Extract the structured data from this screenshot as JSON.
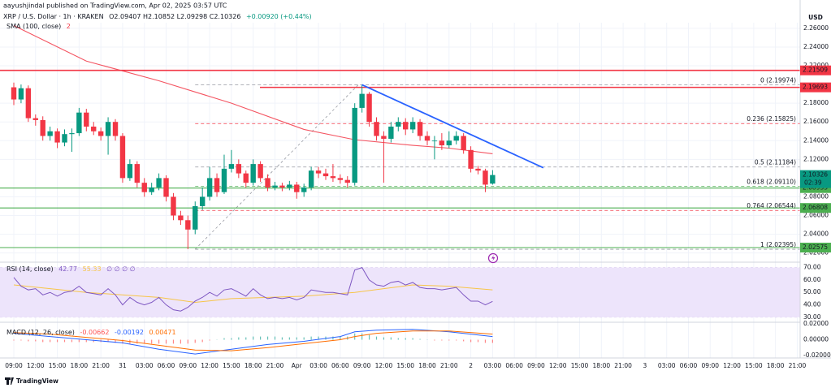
{
  "chart_data": {
    "type": "candlestick",
    "author": "aayushjindal published on TradingView.com, Apr 02, 2025 03:57 UTC",
    "title": "XRP / U.S. Dollar · 1h · KRAKEN",
    "ohlc_readout": "O2.09407 H2.10852 L2.09298 C2.10326",
    "change_readout": "+0.00920 (+0.44%)",
    "currency": "USD",
    "countdown": "02:39",
    "brand": "TradingView",
    "up_color": "#089981",
    "down_color": "#f23645",
    "ylim": [
      2.011,
      2.266
    ],
    "yticks": [
      {
        "value": 2.02,
        "label": "2.02000"
      },
      {
        "value": 2.04,
        "label": "2.04000"
      },
      {
        "value": 2.06,
        "label": "2.06000"
      },
      {
        "value": 2.08,
        "label": "2.08000"
      },
      {
        "value": 2.12,
        "label": "2.12000"
      },
      {
        "value": 2.14,
        "label": "2.14000"
      },
      {
        "value": 2.16,
        "label": "2.16000"
      },
      {
        "value": 2.18,
        "label": "2.18000"
      },
      {
        "value": 2.22,
        "label": "2.22000"
      },
      {
        "value": 2.24,
        "label": "2.24000"
      },
      {
        "value": 2.26,
        "label": "2.26000"
      }
    ],
    "xticks": [
      {
        "value": 0,
        "label": "09:00"
      },
      {
        "value": 3,
        "label": "12:00"
      },
      {
        "value": 6,
        "label": "15:00"
      },
      {
        "value": 9,
        "label": "18:00"
      },
      {
        "value": 12,
        "label": "21:00"
      },
      {
        "value": 15,
        "label": "31"
      },
      {
        "value": 18,
        "label": "03:00"
      },
      {
        "value": 21,
        "label": "06:00"
      },
      {
        "value": 24,
        "label": "09:00"
      },
      {
        "value": 27,
        "label": "12:00"
      },
      {
        "value": 30,
        "label": "15:00"
      },
      {
        "value": 33,
        "label": "18:00"
      },
      {
        "value": 36,
        "label": "21:00"
      },
      {
        "value": 39,
        "label": "Apr"
      },
      {
        "value": 42,
        "label": "03:00"
      },
      {
        "value": 45,
        "label": "06:00"
      },
      {
        "value": 48,
        "label": "09:00"
      },
      {
        "value": 51,
        "label": "12:00"
      },
      {
        "value": 54,
        "label": "15:00"
      },
      {
        "value": 57,
        "label": "18:00"
      },
      {
        "value": 60,
        "label": "21:00"
      },
      {
        "value": 63,
        "label": "2"
      },
      {
        "value": 66,
        "label": "03:00"
      },
      {
        "value": 69,
        "label": "06:00"
      },
      {
        "value": 72,
        "label": "09:00"
      },
      {
        "value": 75,
        "label": "12:00"
      },
      {
        "value": 78,
        "label": "15:00"
      },
      {
        "value": 81,
        "label": "18:00"
      },
      {
        "value": 84,
        "label": "21:00"
      },
      {
        "value": 87,
        "label": "3"
      },
      {
        "value": 90,
        "label": "03:00"
      },
      {
        "value": 93,
        "label": "06:00"
      },
      {
        "value": 96,
        "label": "09:00"
      },
      {
        "value": 99,
        "label": "12:00"
      },
      {
        "value": 102,
        "label": "15:00"
      },
      {
        "value": 105,
        "label": "18:00"
      },
      {
        "value": 108,
        "label": "21:00"
      }
    ],
    "open": [
      2.197,
      2.184,
      2.196,
      2.164,
      2.162,
      2.145,
      2.15,
      2.138,
      2.147,
      2.148,
      2.17,
      2.155,
      2.15,
      2.145,
      2.16,
      2.145,
      2.1,
      2.115,
      2.095,
      2.085,
      2.09,
      2.1,
      2.08,
      2.06,
      2.055,
      2.045,
      2.07,
      2.08,
      2.1,
      2.085,
      2.11,
      2.115,
      2.105,
      2.095,
      2.115,
      2.1,
      2.09,
      2.092,
      2.09,
      2.093,
      2.085,
      2.09,
      2.108,
      2.105,
      2.102,
      2.1,
      2.098,
      2.095,
      2.175,
      2.19,
      2.16,
      2.145,
      2.142,
      2.155,
      2.16,
      2.152,
      2.16,
      2.145,
      2.14,
      2.14,
      2.135,
      2.14,
      2.145,
      2.13,
      2.11,
      2.108,
      2.09407
    ],
    "high": [
      2.202,
      2.2,
      2.199,
      2.168,
      2.166,
      2.155,
      2.153,
      2.152,
      2.153,
      2.175,
      2.174,
      2.16,
      2.154,
      2.165,
      2.163,
      2.148,
      2.12,
      2.118,
      2.1,
      2.095,
      2.105,
      2.103,
      2.084,
      2.065,
      2.06,
      2.075,
      2.09,
      2.112,
      2.105,
      2.125,
      2.13,
      2.12,
      2.108,
      2.12,
      2.118,
      2.104,
      2.096,
      2.095,
      2.097,
      2.096,
      2.094,
      2.112,
      2.112,
      2.11,
      2.115,
      2.104,
      2.102,
      2.18,
      2.1997,
      2.192,
      2.165,
      2.15,
      2.16,
      2.165,
      2.164,
      2.165,
      2.163,
      2.15,
      2.145,
      2.148,
      2.15,
      2.15,
      2.148,
      2.134,
      2.113,
      2.11,
      2.10852
    ],
    "low": [
      2.178,
      2.18,
      2.16,
      2.156,
      2.14,
      2.14,
      2.132,
      2.134,
      2.128,
      2.145,
      2.15,
      2.146,
      2.14,
      2.125,
      2.14,
      2.095,
      2.097,
      2.09,
      2.08,
      2.082,
      2.087,
      2.075,
      2.055,
      2.05,
      2.024,
      2.04,
      2.066,
      2.076,
      2.08,
      2.083,
      2.106,
      2.1,
      2.09,
      2.092,
      2.096,
      2.086,
      2.087,
      2.086,
      2.087,
      2.078,
      2.08,
      2.087,
      2.1,
      2.098,
      2.096,
      2.094,
      2.09,
      2.092,
      2.17,
      2.155,
      2.14,
      2.095,
      2.138,
      2.15,
      2.146,
      2.148,
      2.14,
      2.135,
      2.12,
      2.13,
      2.132,
      2.136,
      2.126,
      2.106,
      2.104,
      2.085,
      2.09298
    ],
    "close": [
      2.184,
      2.196,
      2.164,
      2.162,
      2.145,
      2.15,
      2.138,
      2.147,
      2.148,
      2.17,
      2.155,
      2.15,
      2.145,
      2.16,
      2.145,
      2.1,
      2.115,
      2.095,
      2.085,
      2.09,
      2.1,
      2.08,
      2.06,
      2.055,
      2.045,
      2.07,
      2.08,
      2.1,
      2.085,
      2.11,
      2.115,
      2.105,
      2.095,
      2.115,
      2.1,
      2.09,
      2.092,
      2.09,
      2.093,
      2.085,
      2.09,
      2.108,
      2.105,
      2.102,
      2.1,
      2.098,
      2.095,
      2.175,
      2.19,
      2.16,
      2.145,
      2.142,
      2.155,
      2.16,
      2.152,
      2.16,
      2.145,
      2.14,
      2.14,
      2.135,
      2.14,
      2.145,
      2.13,
      2.11,
      2.108,
      2.093,
      2.10326
    ],
    "sma": {
      "name": "SMA (100, close)",
      "value_label": "2",
      "color": "#f23645",
      "x": [
        0,
        10,
        20,
        30,
        40,
        47,
        55,
        60,
        66
      ],
      "values": [
        2.263,
        2.225,
        2.204,
        2.18,
        2.152,
        2.141,
        2.135,
        2.132,
        2.126
      ]
    },
    "levels": [
      {
        "value": 2.21509,
        "label": "2.21509",
        "color": "#f23645"
      },
      {
        "value": 2.19693,
        "label": "2.19693",
        "color": "#f23645"
      },
      {
        "value": 2.08933,
        "label": "2.08933",
        "color": "#4caf50"
      },
      {
        "value": 2.06808,
        "label": "2.06808",
        "color": "#4caf50"
      },
      {
        "value": 2.02575,
        "label": "2.02575",
        "color": "#4caf50"
      }
    ],
    "last_price": {
      "value": 2.10326,
      "label": "2.10326",
      "color": "#089981"
    },
    "fib": {
      "x": [
        25,
        47.5
      ],
      "values": [
        2.02395,
        2.19974
      ],
      "levels": [
        {
          "value": 2.19974,
          "label": "0 (2.19974)",
          "color": "#9598a1"
        },
        {
          "value": 2.15825,
          "label": "0.236 (2.15825)",
          "color": "#f23645"
        },
        {
          "value": 2.11184,
          "label": "0.5 (2.11184)",
          "color": "#9598a1"
        },
        {
          "value": 2.0911,
          "label": "0.618 (2.09110)",
          "color": "#4caf50"
        },
        {
          "value": 2.06544,
          "label": "0.764 (2.06544)",
          "color": "#f23645"
        },
        {
          "value": 2.02395,
          "label": "1 (2.02395)",
          "color": "#9598a1"
        }
      ]
    },
    "trendline": {
      "color": "#2962ff",
      "x": [
        48,
        73
      ],
      "values": [
        2.1997,
        2.111
      ]
    },
    "rsi": {
      "name": "RSI (14, close)",
      "readouts": [
        "42.77",
        "55.33",
        "∅ ∅ ∅ ∅"
      ],
      "color": "#7e57c2",
      "band_color": "#ede4fb",
      "ylim": [
        26,
        73
      ],
      "yticks": [
        {
          "value": 30,
          "label": "30.00"
        },
        {
          "value": 40,
          "label": "40.00"
        },
        {
          "value": 50,
          "label": "50.00"
        },
        {
          "value": 60,
          "label": "60.00"
        },
        {
          "value": 70,
          "label": "70.00"
        }
      ],
      "values": [
        62,
        55,
        52,
        53,
        48,
        50,
        47,
        50,
        51,
        55,
        50,
        49,
        48,
        53,
        48,
        40,
        46,
        42,
        40,
        42,
        46,
        40,
        36,
        35,
        38,
        43,
        46,
        50,
        47,
        52,
        53,
        50,
        47,
        53,
        48,
        45,
        46,
        45,
        46,
        44,
        46,
        52,
        51,
        50,
        50,
        49,
        48,
        68,
        70,
        60,
        56,
        55,
        58,
        59,
        56,
        58,
        54,
        53,
        53,
        52,
        53,
        54,
        48,
        43,
        43,
        40,
        42.77
      ],
      "ma": {
        "color": "#f7c548",
        "x": [
          0,
          10,
          20,
          25,
          30,
          40,
          47,
          55,
          60,
          66
        ],
        "values": [
          56,
          50,
          46,
          42,
          45,
          47,
          50,
          56,
          55,
          52
        ]
      }
    },
    "macd": {
      "name": "MACD (12, 26, close)",
      "readouts": [
        "-0.00662",
        "-0.00192",
        "0.00471"
      ],
      "ylim": [
        -0.022,
        0.022
      ],
      "yticks": [
        {
          "value": -0.02,
          "label": "-0.02000"
        },
        {
          "value": 0,
          "label": "0.00000"
        },
        {
          "value": 0.02,
          "label": "0.02000"
        }
      ],
      "line": {
        "color": "#2962ff",
        "x": [
          0,
          5,
          10,
          15,
          20,
          25,
          30,
          35,
          40,
          45,
          47,
          50,
          55,
          60,
          66
        ],
        "values": [
          0.008,
          0.004,
          0,
          -0.004,
          -0.012,
          -0.018,
          -0.012,
          -0.006,
          -0.002,
          0.004,
          0.01,
          0.012,
          0.013,
          0.01,
          0.004
        ]
      },
      "signal": {
        "color": "#ff6d00",
        "x": [
          0,
          5,
          10,
          15,
          20,
          25,
          30,
          35,
          40,
          45,
          47,
          50,
          55,
          60,
          66
        ],
        "values": [
          0.009,
          0.007,
          0.003,
          -0.001,
          -0.007,
          -0.013,
          -0.014,
          -0.01,
          -0.005,
          0,
          0.004,
          0.008,
          0.011,
          0.011,
          0.007
        ]
      },
      "histogram": {
        "up_color": "#26a69a",
        "down_color": "#ff5252",
        "values": [
          -0.001,
          -0.001,
          -0.002,
          -0.002,
          -0.003,
          -0.003,
          -0.003,
          -0.003,
          -0.003,
          -0.003,
          -0.003,
          -0.003,
          -0.003,
          -0.003,
          -0.004,
          -0.005,
          -0.005,
          -0.005,
          -0.005,
          -0.005,
          -0.005,
          -0.005,
          -0.005,
          -0.005,
          -0.005,
          -0.004,
          -0.003,
          -0.001,
          0,
          0.002,
          0.002,
          0.003,
          0.003,
          0.004,
          0.004,
          0.004,
          0.004,
          0.003,
          0.003,
          0.003,
          0.003,
          0.004,
          0.004,
          0.004,
          0.004,
          0.004,
          0.004,
          0.008,
          0.008,
          0.006,
          0.004,
          0.003,
          0.003,
          0.002,
          0.002,
          0.002,
          0.001,
          0,
          -0.001,
          -0.001,
          -0.001,
          -0.001,
          -0.002,
          -0.003,
          -0.003,
          -0.004,
          -0.004
        ]
      }
    }
  }
}
